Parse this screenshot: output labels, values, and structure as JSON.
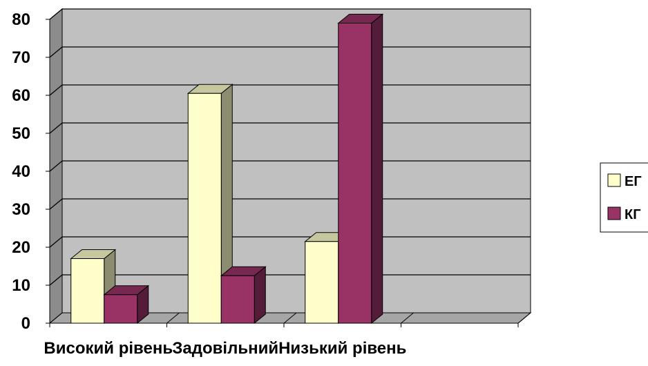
{
  "chart_data": {
    "type": "bar",
    "subtype": "3d-clustered-column",
    "title": "",
    "xlabel": "",
    "ylabel": "",
    "categories": [
      "Високий рівень",
      "Задовільний",
      "Низький рівень",
      ""
    ],
    "series": [
      {
        "name": "ЕГ",
        "values": [
          17,
          60.5,
          21.5,
          null
        ],
        "color": "#FFFFCC"
      },
      {
        "name": "КГ",
        "values": [
          7.5,
          12.5,
          79,
          null
        ],
        "color": "#993366"
      }
    ],
    "ylim": [
      0,
      80
    ],
    "yticks": [
      "0",
      "10",
      "20",
      "30",
      "40",
      "50",
      "60",
      "70",
      "80"
    ],
    "grid": true,
    "legend_position": "right",
    "wall_color": "#C0C0C0"
  }
}
